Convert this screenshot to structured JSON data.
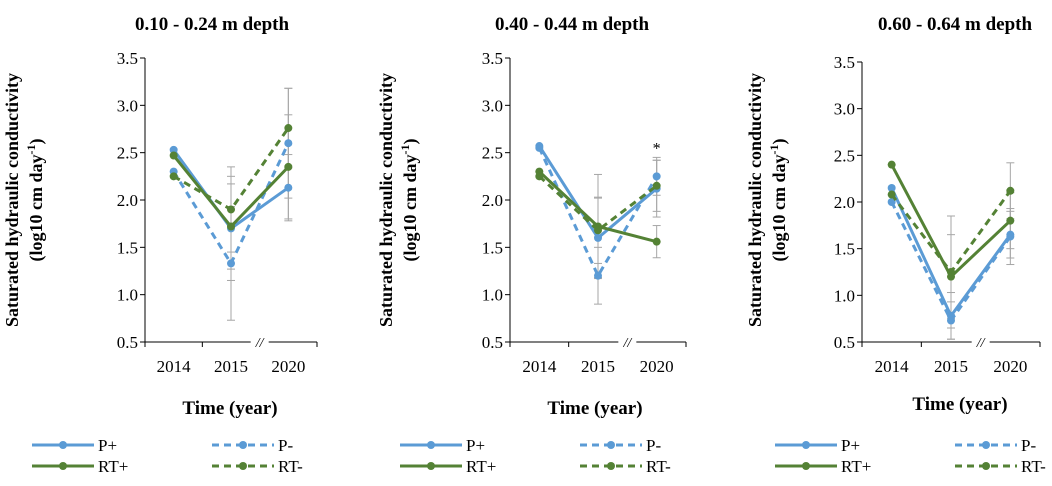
{
  "colors": {
    "P": "#5b9bd5",
    "RT": "#548235",
    "error": "#a6a6a6",
    "axis": "#000000"
  },
  "chart_data": [
    {
      "type": "line",
      "title": "0.10 - 0.24 m depth",
      "ylabel_line1": "Saturated hydraulic conductivity",
      "ylabel_line2": "(log10 cm day",
      "ylabel_sup": "-1",
      "ylabel_close": ")",
      "xlabel": "Time (year)",
      "categories": [
        "2014",
        "2015",
        "2020"
      ],
      "ylim": [
        0.5,
        3.5
      ],
      "yticks": [
        "0.5",
        "1.0",
        "1.5",
        "2.0",
        "2.5",
        "3.0",
        "3.5"
      ],
      "axis_break": "//",
      "annotation": "",
      "legend": "bottom",
      "series": [
        {
          "name": "P+",
          "style": "solid",
          "color": "P",
          "values": [
            2.53,
            1.7,
            2.13
          ],
          "errors": [
            null,
            0.55,
            0.35
          ]
        },
        {
          "name": "P-",
          "style": "dashed",
          "color": "P",
          "values": [
            2.3,
            1.33,
            2.6
          ],
          "errors": [
            null,
            0.6,
            0.58
          ]
        },
        {
          "name": "RT+",
          "style": "solid",
          "color": "RT",
          "values": [
            2.47,
            1.72,
            2.35
          ],
          "errors": [
            null,
            0.45,
            0.55
          ]
        },
        {
          "name": "RT-",
          "style": "dashed",
          "color": "RT",
          "values": [
            2.25,
            1.9,
            2.76
          ],
          "errors": [
            null,
            0.45,
            0.42
          ]
        }
      ]
    },
    {
      "type": "line",
      "title": "0.40 - 0.44 m depth",
      "ylabel_line1": "Saturated hydraulic conductivity",
      "ylabel_line2": "(log10 cm day",
      "ylabel_sup": "-1",
      "ylabel_close": ")",
      "xlabel": "Time (year)",
      "categories": [
        "2014",
        "2015",
        "2020"
      ],
      "ylim": [
        0.5,
        3.5
      ],
      "yticks": [
        "0.5",
        "1.0",
        "1.5",
        "2.0",
        "2.5",
        "3.0",
        "3.5"
      ],
      "axis_break": "//",
      "annotation": "*",
      "legend": "bottom",
      "series": [
        {
          "name": "P+",
          "style": "solid",
          "color": "P",
          "values": [
            2.57,
            1.6,
            2.12
          ],
          "errors": [
            null,
            0.42,
            0.3
          ]
        },
        {
          "name": "P-",
          "style": "dashed",
          "color": "P",
          "values": [
            2.55,
            1.2,
            2.25
          ],
          "errors": [
            null,
            0.3,
            0.2
          ]
        },
        {
          "name": "RT+",
          "style": "solid",
          "color": "RT",
          "values": [
            2.3,
            1.72,
            1.56
          ],
          "errors": [
            null,
            0.55,
            0.17
          ]
        },
        {
          "name": "RT-",
          "style": "dashed",
          "color": "RT",
          "values": [
            2.25,
            1.68,
            2.15
          ],
          "errors": [
            null,
            0.35,
            0.27
          ]
        }
      ]
    },
    {
      "type": "line",
      "title": "0.60 - 0.64 m depth",
      "ylabel_line1": "Saturated hydraulic conductivity",
      "ylabel_line2": "(log10 cm day",
      "ylabel_sup": "-1",
      "ylabel_close": ")",
      "xlabel": "Time (year)",
      "categories": [
        "2014",
        "2015",
        "2020"
      ],
      "ylim": [
        0.5,
        3.5
      ],
      "yticks": [
        "0.5",
        "1.0",
        "1.5",
        "2.0",
        "2.5",
        "3.0",
        "3.5"
      ],
      "axis_break": "//",
      "annotation": "",
      "legend": "bottom",
      "series": [
        {
          "name": "P+",
          "style": "solid",
          "color": "P",
          "values": [
            2.15,
            0.78,
            1.65
          ],
          "errors": [
            null,
            0.25,
            0.25
          ]
        },
        {
          "name": "P-",
          "style": "dashed",
          "color": "P",
          "values": [
            2.0,
            0.73,
            1.63
          ],
          "errors": [
            null,
            0.2,
            0.3
          ]
        },
        {
          "name": "RT+",
          "style": "solid",
          "color": "RT",
          "values": [
            2.4,
            1.2,
            1.8
          ],
          "errors": [
            null,
            0.45,
            0.3
          ]
        },
        {
          "name": "RT-",
          "style": "dashed",
          "color": "RT",
          "values": [
            2.08,
            1.25,
            2.12
          ],
          "errors": [
            null,
            0.6,
            0.3
          ]
        }
      ]
    }
  ]
}
